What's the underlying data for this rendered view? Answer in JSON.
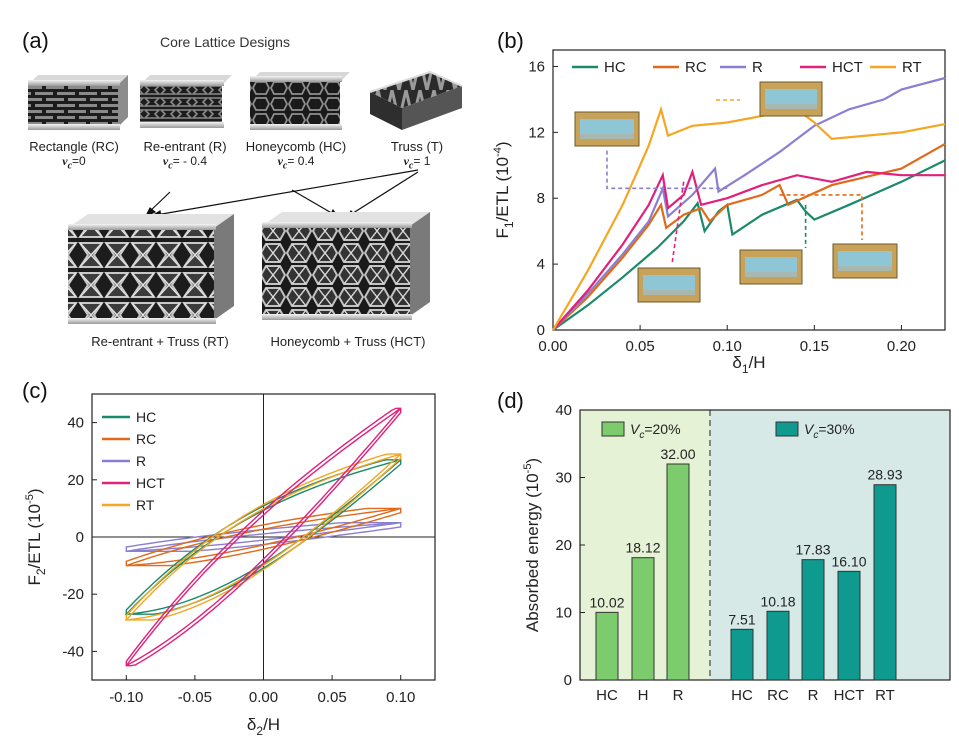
{
  "panel_a": {
    "label": "(a)",
    "title": "Core Lattice Designs",
    "designs": [
      {
        "name": "Rectangle (RC)",
        "nu_symbol": "ν",
        "nu_sub": "c",
        "nu_value": "=0"
      },
      {
        "name": "Re-entrant (R)",
        "nu_symbol": "ν",
        "nu_sub": "c",
        "nu_value": "= - 0.4"
      },
      {
        "name": "Honeycomb (HC)",
        "nu_symbol": "ν",
        "nu_sub": "c",
        "nu_value": "= 0.4"
      },
      {
        "name": "Truss (T)",
        "nu_symbol": "ν",
        "nu_sub": "c",
        "nu_value": "= 1"
      }
    ],
    "hybrids": [
      {
        "name": "Re-entrant + Truss (RT)"
      },
      {
        "name": "Honeycomb + Truss (HCT)"
      }
    ]
  },
  "chart_data": [
    {
      "panel": "(b)",
      "type": "line",
      "ylabel_main": "F",
      "ylabel_sub": "1",
      "ylabel_rest": "/ETL (10",
      "ylabel_exp": "-4",
      "ylabel_end": ")",
      "xlabel_main": "δ",
      "xlabel_sub": "1",
      "xlabel_rest": "/H",
      "xlim": [
        0,
        0.225
      ],
      "ylim": [
        0,
        17
      ],
      "xticks": [
        "0.00",
        "0.05",
        "0.10",
        "0.15",
        "0.20"
      ],
      "xtick_values": [
        0,
        0.05,
        0.1,
        0.15,
        0.2
      ],
      "yticks": [
        "0",
        "4",
        "8",
        "12",
        "16"
      ],
      "ytick_values": [
        0,
        4,
        8,
        12,
        16
      ],
      "legend_position": "top",
      "series": [
        {
          "name": "HC",
          "color": "#1a8a6a",
          "points": [
            [
              0,
              0
            ],
            [
              0.02,
              1.5
            ],
            [
              0.04,
              3.2
            ],
            [
              0.06,
              5.0
            ],
            [
              0.075,
              6.6
            ],
            [
              0.083,
              7.7
            ],
            [
              0.087,
              6.0
            ],
            [
              0.095,
              7.2
            ],
            [
              0.1,
              7.6
            ],
            [
              0.103,
              5.8
            ],
            [
              0.12,
              7.0
            ],
            [
              0.14,
              7.9
            ],
            [
              0.145,
              7.2
            ],
            [
              0.15,
              6.7
            ],
            [
              0.17,
              7.6
            ],
            [
              0.2,
              9.0
            ],
            [
              0.225,
              10.3
            ]
          ]
        },
        {
          "name": "RC",
          "color": "#e06a1a",
          "points": [
            [
              0,
              0
            ],
            [
              0.02,
              2.0
            ],
            [
              0.04,
              4.4
            ],
            [
              0.055,
              6.4
            ],
            [
              0.062,
              7.6
            ],
            [
              0.065,
              6.2
            ],
            [
              0.075,
              7.0
            ],
            [
              0.085,
              7.4
            ],
            [
              0.09,
              6.6
            ],
            [
              0.1,
              7.6
            ],
            [
              0.12,
              8.2
            ],
            [
              0.13,
              8.8
            ],
            [
              0.135,
              7.6
            ],
            [
              0.16,
              8.8
            ],
            [
              0.2,
              9.8
            ],
            [
              0.225,
              11.3
            ]
          ]
        },
        {
          "name": "R",
          "color": "#8a7fd0",
          "points": [
            [
              0,
              0
            ],
            [
              0.02,
              2.2
            ],
            [
              0.04,
              4.6
            ],
            [
              0.055,
              6.6
            ],
            [
              0.063,
              8.6
            ],
            [
              0.066,
              6.9
            ],
            [
              0.08,
              8.2
            ],
            [
              0.093,
              9.8
            ],
            [
              0.095,
              8.4
            ],
            [
              0.11,
              9.4
            ],
            [
              0.13,
              10.8
            ],
            [
              0.15,
              12.4
            ],
            [
              0.17,
              13.4
            ],
            [
              0.19,
              14.0
            ],
            [
              0.2,
              14.6
            ],
            [
              0.225,
              15.3
            ]
          ]
        },
        {
          "name": "HCT",
          "color": "#e0207a",
          "points": [
            [
              0,
              0
            ],
            [
              0.02,
              2.4
            ],
            [
              0.04,
              5.2
            ],
            [
              0.055,
              7.6
            ],
            [
              0.063,
              9.4
            ],
            [
              0.066,
              7.4
            ],
            [
              0.075,
              8.2
            ],
            [
              0.08,
              9.6
            ],
            [
              0.085,
              7.6
            ],
            [
              0.1,
              8.0
            ],
            [
              0.12,
              8.8
            ],
            [
              0.14,
              9.4
            ],
            [
              0.16,
              9.0
            ],
            [
              0.18,
              9.6
            ],
            [
              0.2,
              9.4
            ],
            [
              0.225,
              9.4
            ]
          ]
        },
        {
          "name": "RT",
          "color": "#f5a623",
          "points": [
            [
              0,
              0
            ],
            [
              0.02,
              3.6
            ],
            [
              0.04,
              7.6
            ],
            [
              0.055,
              11.2
            ],
            [
              0.062,
              13.4
            ],
            [
              0.066,
              11.8
            ],
            [
              0.08,
              12.4
            ],
            [
              0.1,
              12.6
            ],
            [
              0.12,
              13.0
            ],
            [
              0.14,
              13.4
            ],
            [
              0.15,
              12.6
            ],
            [
              0.16,
              11.6
            ],
            [
              0.18,
              11.8
            ],
            [
              0.2,
              12.0
            ],
            [
              0.225,
              12.5
            ]
          ]
        }
      ]
    },
    {
      "panel": "(c)",
      "type": "line",
      "ylabel_main": "F",
      "ylabel_sub": "2",
      "ylabel_rest": "/ETL (10",
      "ylabel_exp": "-5",
      "ylabel_end": ")",
      "xlabel_main": "δ",
      "xlabel_sub": "2",
      "xlabel_rest": "/H",
      "xlim": [
        -0.125,
        0.125
      ],
      "ylim": [
        -50,
        50
      ],
      "xticks": [
        "-0.10",
        "-0.05",
        "0.00",
        "0.05",
        "0.10"
      ],
      "xtick_values": [
        -0.1,
        -0.05,
        0,
        0.05,
        0.1
      ],
      "yticks": [
        "-40",
        "-20",
        "0",
        "20",
        "40"
      ],
      "ytick_values": [
        -40,
        -20,
        0,
        20,
        40
      ],
      "legend_position": "top-left",
      "series": [
        {
          "name": "HC",
          "color": "#1a8a6a",
          "peak": 27,
          "width": 17
        },
        {
          "name": "RC",
          "color": "#e06a1a",
          "peak": 10,
          "width": 5
        },
        {
          "name": "R",
          "color": "#8a7fd0",
          "peak": 5,
          "width": 2
        },
        {
          "name": "HCT",
          "color": "#e0207a",
          "peak": 45,
          "width": 14
        },
        {
          "name": "RT",
          "color": "#f5a623",
          "peak": 29,
          "width": 18
        }
      ]
    },
    {
      "panel": "(d)",
      "type": "bar",
      "ylabel": "Absorbed energy (10",
      "ylabel_exp": "-5",
      "ylabel_end": ")",
      "ylim": [
        0,
        40
      ],
      "yticks": [
        "0",
        "10",
        "20",
        "30",
        "40"
      ],
      "ytick_values": [
        0,
        10,
        20,
        30,
        40
      ],
      "groups": [
        {
          "legend_prefix": "V",
          "legend_sub": "c",
          "legend_suffix": "=20%",
          "bar_color": "#7ccc6e",
          "bg_color": "#e6f2d6",
          "categories": [
            "HC",
            "H",
            "R"
          ],
          "values": [
            10.02,
            18.12,
            32.0
          ],
          "labels": [
            "10.02",
            "18.12",
            "32.00"
          ]
        },
        {
          "legend_prefix": "V",
          "legend_sub": "c",
          "legend_suffix": "=30%",
          "bar_color": "#0f9a90",
          "bg_color": "#d6e9e6",
          "categories": [
            "HC",
            "RC",
            "R",
            "HCT",
            "RT"
          ],
          "values": [
            7.51,
            10.18,
            17.83,
            16.1,
            28.93
          ],
          "labels": [
            "7.51",
            "10.18",
            "17.83",
            "16.10",
            "28.93"
          ]
        }
      ]
    }
  ]
}
